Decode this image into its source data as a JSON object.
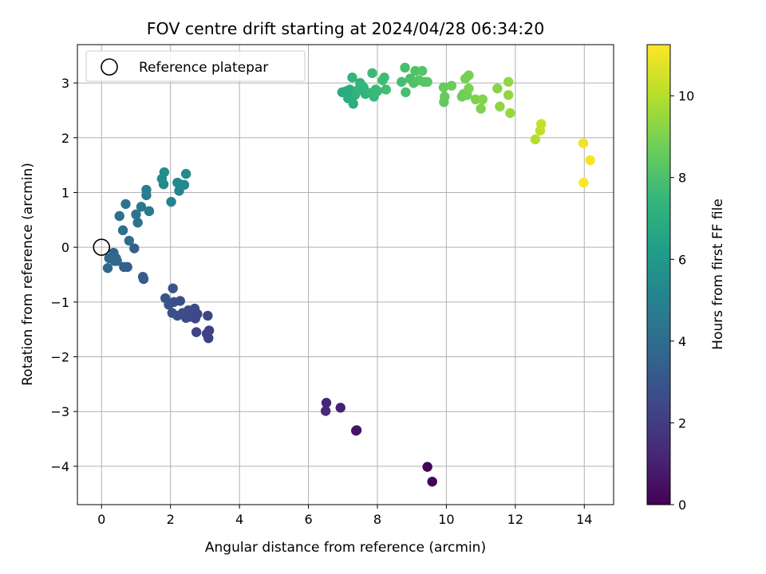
{
  "chart_data": {
    "type": "scatter",
    "title": "FOV centre drift starting at 2024/04/28 06:34:20",
    "xlabel": "Angular distance from reference (arcmin)",
    "ylabel": "Rotation from reference (arcmin)",
    "xlim": [
      -0.7,
      14.85
    ],
    "ylim": [
      -4.7,
      3.7
    ],
    "xticks": [
      0,
      2,
      4,
      6,
      8,
      10,
      12,
      14
    ],
    "yticks": [
      -4,
      -3,
      -2,
      -1,
      0,
      1,
      2,
      3
    ],
    "grid": true,
    "legend": {
      "placement": "top-left",
      "entries": [
        "Reference platepar"
      ]
    },
    "reference_point": {
      "x": 0,
      "y": 0
    },
    "colorbar": {
      "label": "Hours from first FF file",
      "range": [
        0,
        11.25
      ],
      "ticks": [
        0,
        2,
        4,
        6,
        8,
        10
      ],
      "colormap": "viridis"
    },
    "points": [
      {
        "x": 9.59,
        "y": -4.28,
        "h": 0.05
      },
      {
        "x": 9.45,
        "y": -4.01,
        "h": 0.1
      },
      {
        "x": 7.38,
        "y": -3.35,
        "h": 0.6
      },
      {
        "x": 7.4,
        "y": -3.34,
        "h": 0.65
      },
      {
        "x": 6.93,
        "y": -2.93,
        "h": 1.0
      },
      {
        "x": 6.52,
        "y": -2.84,
        "h": 1.2
      },
      {
        "x": 6.5,
        "y": -2.99,
        "h": 1.3
      },
      {
        "x": 3.1,
        "y": -1.66,
        "h": 2.2
      },
      {
        "x": 3.12,
        "y": -1.52,
        "h": 2.2
      },
      {
        "x": 3.05,
        "y": -1.58,
        "h": 2.25
      },
      {
        "x": 2.75,
        "y": -1.55,
        "h": 2.3
      },
      {
        "x": 3.08,
        "y": -1.25,
        "h": 2.35
      },
      {
        "x": 2.72,
        "y": -1.3,
        "h": 2.4
      },
      {
        "x": 2.78,
        "y": -1.22,
        "h": 2.45
      },
      {
        "x": 2.7,
        "y": -1.12,
        "h": 2.5
      },
      {
        "x": 2.55,
        "y": -1.27,
        "h": 2.5
      },
      {
        "x": 2.45,
        "y": -1.29,
        "h": 2.55
      },
      {
        "x": 2.52,
        "y": -1.15,
        "h": 2.6
      },
      {
        "x": 2.35,
        "y": -1.2,
        "h": 2.65
      },
      {
        "x": 2.28,
        "y": -0.98,
        "h": 2.7
      },
      {
        "x": 2.2,
        "y": -1.25,
        "h": 2.75
      },
      {
        "x": 2.05,
        "y": -1.2,
        "h": 2.8
      },
      {
        "x": 2.1,
        "y": -1.0,
        "h": 2.85
      },
      {
        "x": 1.95,
        "y": -1.05,
        "h": 2.9
      },
      {
        "x": 1.85,
        "y": -0.93,
        "h": 2.95
      },
      {
        "x": 2.07,
        "y": -0.75,
        "h": 3.0
      },
      {
        "x": 1.22,
        "y": -0.58,
        "h": 3.2
      },
      {
        "x": 1.2,
        "y": -0.54,
        "h": 3.25
      },
      {
        "x": 0.95,
        "y": -0.02,
        "h": 3.3
      },
      {
        "x": 0.75,
        "y": -0.36,
        "h": 3.35
      },
      {
        "x": 0.65,
        "y": -0.36,
        "h": 3.4
      },
      {
        "x": 0.42,
        "y": -0.2,
        "h": 3.5
      },
      {
        "x": 0.38,
        "y": -0.25,
        "h": 3.55
      },
      {
        "x": 0.35,
        "y": -0.1,
        "h": 3.6
      },
      {
        "x": 0.3,
        "y": -0.18,
        "h": 3.65
      },
      {
        "x": 0.22,
        "y": -0.2,
        "h": 3.7
      },
      {
        "x": 0.18,
        "y": -0.38,
        "h": 3.75
      },
      {
        "x": 0.45,
        "y": -0.25,
        "h": 3.8
      },
      {
        "x": 0.8,
        "y": 0.12,
        "h": 4.0
      },
      {
        "x": 0.62,
        "y": 0.31,
        "h": 4.1
      },
      {
        "x": 0.52,
        "y": 0.57,
        "h": 4.2
      },
      {
        "x": 1.05,
        "y": 0.45,
        "h": 4.3
      },
      {
        "x": 1.0,
        "y": 0.6,
        "h": 4.35
      },
      {
        "x": 0.7,
        "y": 0.79,
        "h": 4.4
      },
      {
        "x": 1.15,
        "y": 0.74,
        "h": 4.5
      },
      {
        "x": 1.38,
        "y": 0.66,
        "h": 4.6
      },
      {
        "x": 1.3,
        "y": 0.95,
        "h": 4.7
      },
      {
        "x": 1.3,
        "y": 1.05,
        "h": 4.8
      },
      {
        "x": 2.02,
        "y": 0.83,
        "h": 5.0
      },
      {
        "x": 2.25,
        "y": 1.03,
        "h": 5.1
      },
      {
        "x": 2.28,
        "y": 1.15,
        "h": 5.2
      },
      {
        "x": 2.4,
        "y": 1.14,
        "h": 5.25
      },
      {
        "x": 2.2,
        "y": 1.18,
        "h": 5.3
      },
      {
        "x": 2.45,
        "y": 1.34,
        "h": 5.35
      },
      {
        "x": 1.8,
        "y": 1.15,
        "h": 5.4
      },
      {
        "x": 1.75,
        "y": 1.25,
        "h": 5.45
      },
      {
        "x": 1.82,
        "y": 1.37,
        "h": 5.5
      },
      {
        "x": 6.98,
        "y": 2.83,
        "h": 6.8
      },
      {
        "x": 7.1,
        "y": 2.85,
        "h": 6.9
      },
      {
        "x": 7.2,
        "y": 2.88,
        "h": 6.95
      },
      {
        "x": 7.15,
        "y": 2.72,
        "h": 7.0
      },
      {
        "x": 7.3,
        "y": 2.62,
        "h": 7.05
      },
      {
        "x": 7.35,
        "y": 2.78,
        "h": 7.1
      },
      {
        "x": 7.4,
        "y": 2.85,
        "h": 7.15
      },
      {
        "x": 7.5,
        "y": 3.0,
        "h": 7.2
      },
      {
        "x": 7.6,
        "y": 2.92,
        "h": 7.25
      },
      {
        "x": 7.65,
        "y": 2.8,
        "h": 7.3
      },
      {
        "x": 7.27,
        "y": 3.1,
        "h": 7.35
      },
      {
        "x": 7.45,
        "y": 2.88,
        "h": 7.4
      },
      {
        "x": 7.55,
        "y": 2.95,
        "h": 7.45
      },
      {
        "x": 7.8,
        "y": 2.82,
        "h": 7.5
      },
      {
        "x": 7.9,
        "y": 2.75,
        "h": 7.55
      },
      {
        "x": 7.95,
        "y": 2.88,
        "h": 7.6
      },
      {
        "x": 8.0,
        "y": 2.85,
        "h": 7.62
      },
      {
        "x": 7.85,
        "y": 3.18,
        "h": 7.65
      },
      {
        "x": 8.15,
        "y": 3.05,
        "h": 7.7
      },
      {
        "x": 8.2,
        "y": 3.1,
        "h": 7.75
      },
      {
        "x": 8.25,
        "y": 2.88,
        "h": 7.8
      },
      {
        "x": 8.7,
        "y": 3.02,
        "h": 7.85
      },
      {
        "x": 8.82,
        "y": 2.83,
        "h": 7.9
      },
      {
        "x": 8.8,
        "y": 3.28,
        "h": 7.95
      },
      {
        "x": 8.95,
        "y": 3.08,
        "h": 8.0
      },
      {
        "x": 9.05,
        "y": 3.0,
        "h": 8.05
      },
      {
        "x": 9.1,
        "y": 3.22,
        "h": 8.1
      },
      {
        "x": 9.2,
        "y": 3.05,
        "h": 8.15
      },
      {
        "x": 9.3,
        "y": 3.22,
        "h": 8.2
      },
      {
        "x": 9.35,
        "y": 3.02,
        "h": 8.25
      },
      {
        "x": 9.45,
        "y": 3.02,
        "h": 8.3
      },
      {
        "x": 9.93,
        "y": 2.65,
        "h": 8.5
      },
      {
        "x": 9.95,
        "y": 2.75,
        "h": 8.55
      },
      {
        "x": 9.92,
        "y": 2.92,
        "h": 8.6
      },
      {
        "x": 10.15,
        "y": 2.95,
        "h": 8.65
      },
      {
        "x": 10.45,
        "y": 2.75,
        "h": 8.7
      },
      {
        "x": 10.5,
        "y": 2.8,
        "h": 8.75
      },
      {
        "x": 10.6,
        "y": 2.78,
        "h": 8.8
      },
      {
        "x": 10.55,
        "y": 3.08,
        "h": 8.85
      },
      {
        "x": 10.65,
        "y": 3.14,
        "h": 8.9
      },
      {
        "x": 10.65,
        "y": 2.9,
        "h": 8.95
      },
      {
        "x": 10.85,
        "y": 2.7,
        "h": 9.0
      },
      {
        "x": 11.0,
        "y": 2.53,
        "h": 9.05
      },
      {
        "x": 11.05,
        "y": 2.7,
        "h": 9.1
      },
      {
        "x": 11.48,
        "y": 2.9,
        "h": 9.2
      },
      {
        "x": 11.55,
        "y": 2.57,
        "h": 9.3
      },
      {
        "x": 11.8,
        "y": 3.02,
        "h": 9.35
      },
      {
        "x": 11.8,
        "y": 2.78,
        "h": 9.4
      },
      {
        "x": 11.85,
        "y": 2.45,
        "h": 9.5
      },
      {
        "x": 12.58,
        "y": 1.97,
        "h": 10.0
      },
      {
        "x": 12.72,
        "y": 2.13,
        "h": 10.2
      },
      {
        "x": 12.75,
        "y": 2.25,
        "h": 10.3
      },
      {
        "x": 13.97,
        "y": 1.9,
        "h": 11.0
      },
      {
        "x": 14.17,
        "y": 1.59,
        "h": 11.1
      },
      {
        "x": 13.98,
        "y": 1.18,
        "h": 11.2
      }
    ]
  }
}
